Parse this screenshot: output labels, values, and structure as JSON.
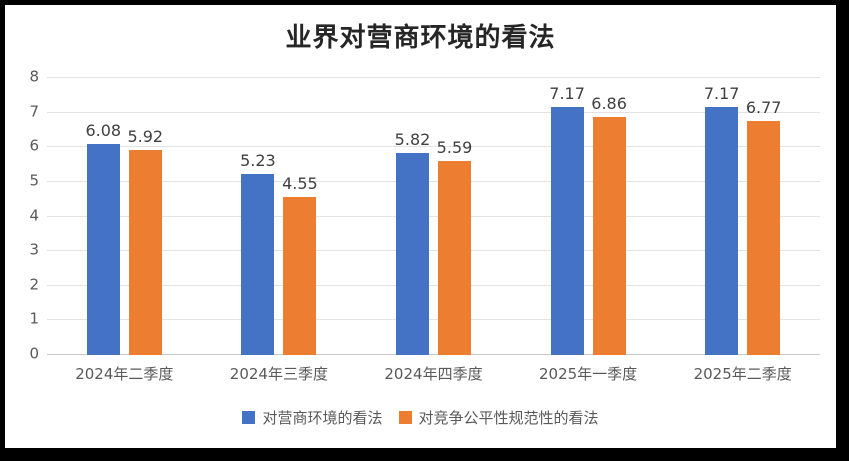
{
  "title": "业界对营商环境的看法",
  "chart_data": {
    "type": "bar",
    "title": "业界对营商环境的看法",
    "categories": [
      "2024年二季度",
      "2024年三季度",
      "2024年四季度",
      "2025年一季度",
      "2025年二季度"
    ],
    "series": [
      {
        "name": "对营商环境的看法",
        "color": "#4472C4",
        "values": [
          6.08,
          5.23,
          5.82,
          7.17,
          7.17
        ]
      },
      {
        "name": "对竞争公平性规范性的看法",
        "color": "#ED7D31",
        "values": [
          5.92,
          4.55,
          5.59,
          6.86,
          6.77
        ]
      }
    ],
    "xlabel": "",
    "ylabel": "",
    "ylim": [
      0,
      8
    ],
    "ytick_step": 1,
    "grid": true,
    "legend_position": "bottom",
    "data_labels": true
  },
  "colors": {
    "series1": "#4472C4",
    "series2": "#ED7D31",
    "gridline": "#e3e3e3",
    "axis_line": "#c9c9c9",
    "axis_text": "#595959",
    "data_label_text": "#404040",
    "title_text": "#262626",
    "frame": "#000000",
    "background": "#ffffff"
  }
}
